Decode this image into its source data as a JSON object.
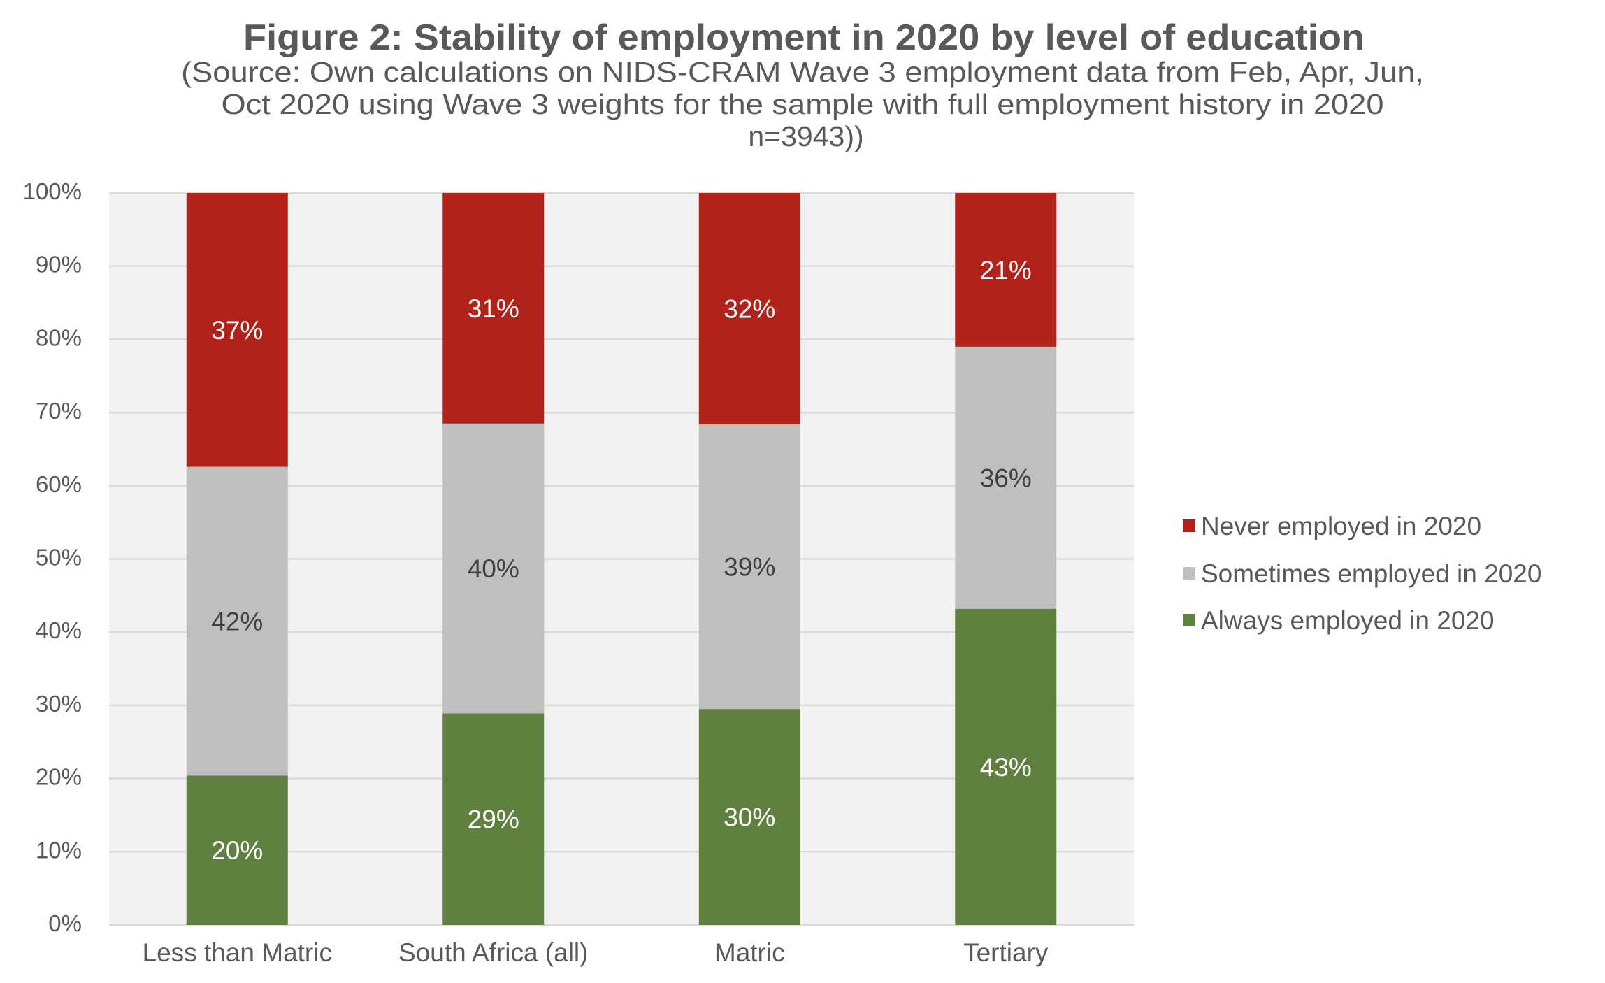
{
  "chart_data": {
    "type": "bar",
    "stacked": true,
    "percent_stacked": true,
    "title": "Figure 2: Stability of employment in 2020 by level of education",
    "subtitle_lines": [
      "(Source: Own calculations on NIDS-CRAM Wave 3 employment data from Feb, Apr, Jun,",
      "Oct 2020 using Wave 3 weights for the sample with full employment history in 2020",
      "n=3943))"
    ],
    "xlabel": "",
    "ylabel": "",
    "ylim": [
      0,
      100
    ],
    "y_ticks": [
      "0%",
      "10%",
      "20%",
      "30%",
      "40%",
      "50%",
      "60%",
      "70%",
      "80%",
      "90%",
      "100%"
    ],
    "grid": true,
    "legend_position": "right",
    "categories": [
      "Less than Matric",
      "South Africa (all)",
      "Matric",
      "Tertiary"
    ],
    "series": [
      {
        "name": "Always employed in 2020",
        "color": "#60803F",
        "label_color": "#FFFFFF",
        "values": [
          20.4,
          28.9,
          29.5,
          43.2
        ],
        "labels": [
          "20%",
          "29%",
          "30%",
          "43%"
        ]
      },
      {
        "name": "Sometimes employed in 2020",
        "color": "#BFBFBF",
        "label_color": "#404040",
        "values": [
          42.2,
          39.6,
          38.9,
          35.8
        ],
        "labels": [
          "42%",
          "40%",
          "39%",
          "36%"
        ]
      },
      {
        "name": "Never employed in 2020",
        "color": "#B0221A",
        "label_color": "#FFFFFF",
        "values": [
          37.4,
          31.5,
          31.6,
          21.0
        ],
        "labels": [
          "37%",
          "31%",
          "32%",
          "21%"
        ]
      }
    ],
    "legend_order": [
      "Never employed in 2020",
      "Sometimes employed in 2020",
      "Always employed in 2020"
    ]
  },
  "style": {
    "plot_background": "#F2F2F2",
    "gridline_color": "#D9D9D9",
    "text_color": "#595959"
  }
}
